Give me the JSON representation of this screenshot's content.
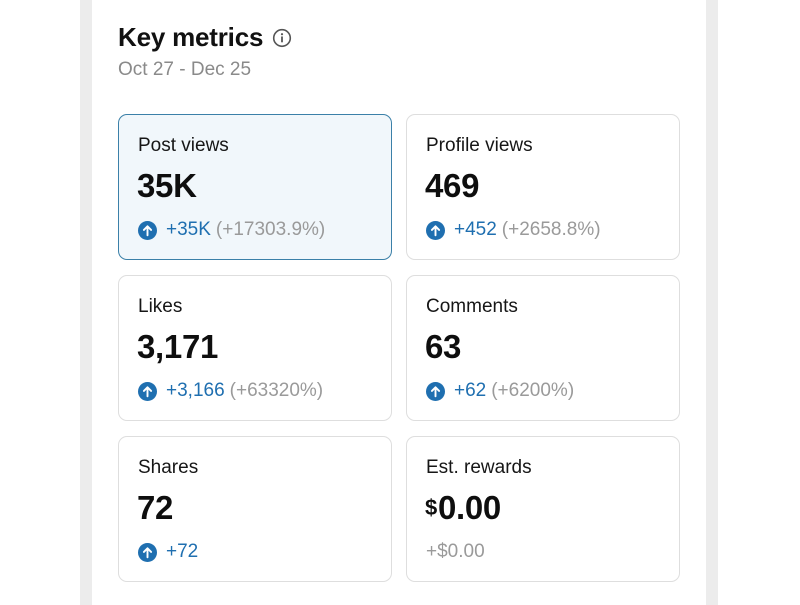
{
  "header": {
    "title": "Key metrics",
    "date_range": "Oct 27 - Dec 25"
  },
  "icons": {
    "info": "info-circle-icon",
    "up": "arrow-up-circle-icon"
  },
  "colors": {
    "accent": "#1f6fb0",
    "active_card_bg": "#f1f7fb",
    "active_card_border": "#3b80a8",
    "muted": "#9a9a9a"
  },
  "metrics": [
    {
      "label": "Post views",
      "value": "35K",
      "delta": "+35K",
      "pct": "(+17303.9%)",
      "selected": true
    },
    {
      "label": "Profile views",
      "value": "469",
      "delta": "+452",
      "pct": "(+2658.8%)"
    },
    {
      "label": "Likes",
      "value": "3,171",
      "delta": "+3,166",
      "pct": "(+63320%)"
    },
    {
      "label": "Comments",
      "value": "63",
      "delta": "+62",
      "pct": "(+6200%)"
    },
    {
      "label": "Shares",
      "value": "72",
      "delta": "+72",
      "pct": ""
    },
    {
      "label": "Est. rewards",
      "currency": "$",
      "value": "0.00",
      "delta": "+$0.00",
      "pct": ""
    }
  ]
}
